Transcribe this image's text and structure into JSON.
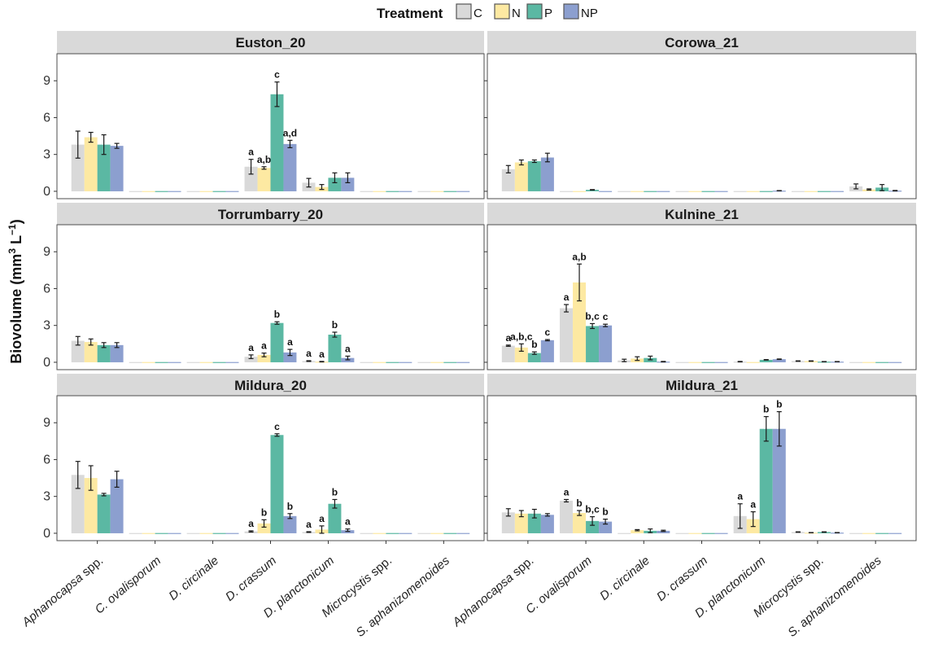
{
  "chart_data": {
    "type": "bar",
    "facets": [
      "Euston_20",
      "Corowa_21",
      "Torrumbarry_20",
      "Kulnine_21",
      "Mildura_20",
      "Mildura_21"
    ],
    "categories": [
      "Aphanocapsa spp.",
      "C. ovalisporum",
      "D. circinale",
      "D. crassum",
      "D. planctonicum",
      "Microcystis spp.",
      "S. aphanizomenoides"
    ],
    "treatments": [
      "C",
      "N",
      "P",
      "NP"
    ],
    "legend_title": "Treatment",
    "ylabel_main": "Biovolume (mm",
    "ylabel_sup1": "3",
    "ylabel_mid": " L",
    "ylabel_sup2": "−1",
    "ylabel_close": ")",
    "yticks": [
      "0",
      "3",
      "6",
      "9"
    ],
    "ylim": [
      -0.6,
      11.2
    ],
    "colors": {
      "C": "#d9d9d9",
      "N": "#fde9a2",
      "P": "#5bb8a3",
      "NP": "#8c9fcf"
    },
    "panels": {
      "Euston_20": {
        "values": [
          [
            3.8,
            4.4,
            3.8,
            3.7
          ],
          [
            0.02,
            0.02,
            0.02,
            0.02
          ],
          [
            0.02,
            0.02,
            0.02,
            0.02
          ],
          [
            2.0,
            1.9,
            7.9,
            3.85
          ],
          [
            0.7,
            0.35,
            1.1,
            1.1
          ],
          [
            0.02,
            0.02,
            0.02,
            0.02
          ],
          [
            0.02,
            0.02,
            0.02,
            0.02
          ]
        ],
        "errors": [
          [
            1.1,
            0.4,
            0.8,
            0.2
          ],
          [
            0,
            0,
            0,
            0
          ],
          [
            0,
            0,
            0,
            0
          ],
          [
            0.6,
            0.1,
            1.0,
            0.3
          ],
          [
            0.35,
            0.2,
            0.4,
            0.4
          ],
          [
            0,
            0,
            0,
            0
          ],
          [
            0,
            0,
            0,
            0
          ]
        ],
        "labels": [
          [],
          [],
          [],
          [
            "a",
            "a,b",
            "c",
            "a,d"
          ],
          [],
          [],
          []
        ]
      },
      "Corowa_21": {
        "values": [
          [
            1.8,
            2.35,
            2.45,
            2.75
          ],
          [
            0.02,
            0.02,
            0.12,
            0.02
          ],
          [
            0.02,
            0.02,
            0.02,
            0.02
          ],
          [
            0.02,
            0.02,
            0.02,
            0.02
          ],
          [
            0.02,
            0.02,
            0.02,
            0.05
          ],
          [
            0.02,
            0.02,
            0.02,
            0.02
          ],
          [
            0.4,
            0.15,
            0.3,
            0.05
          ]
        ],
        "errors": [
          [
            0.3,
            0.2,
            0.1,
            0.35
          ],
          [
            0,
            0,
            0.02,
            0
          ],
          [
            0,
            0,
            0,
            0
          ],
          [
            0,
            0,
            0,
            0
          ],
          [
            0,
            0,
            0,
            0.01
          ],
          [
            0,
            0,
            0,
            0
          ],
          [
            0.2,
            0.05,
            0.25,
            0.02
          ]
        ],
        "labels": [
          [],
          [],
          [],
          [],
          [],
          [],
          []
        ]
      },
      "Torrumbarry_20": {
        "values": [
          [
            1.75,
            1.65,
            1.4,
            1.4
          ],
          [
            0.02,
            0.02,
            0.02,
            0.02
          ],
          [
            0.02,
            0.02,
            0.02,
            0.02
          ],
          [
            0.45,
            0.6,
            3.2,
            0.8
          ],
          [
            0.1,
            0.05,
            2.25,
            0.35
          ],
          [
            0.02,
            0.02,
            0.02,
            0.02
          ],
          [
            0.02,
            0.02,
            0.02,
            0.02
          ]
        ],
        "errors": [
          [
            0.35,
            0.25,
            0.2,
            0.2
          ],
          [
            0,
            0,
            0,
            0
          ],
          [
            0,
            0,
            0,
            0
          ],
          [
            0.15,
            0.15,
            0.1,
            0.25
          ],
          [
            0.03,
            0.02,
            0.2,
            0.15
          ],
          [
            0,
            0,
            0,
            0
          ],
          [
            0,
            0,
            0,
            0
          ]
        ],
        "labels": [
          [],
          [],
          [],
          [
            "a",
            "a",
            "b",
            "a"
          ],
          [
            "a",
            "a",
            "b",
            "a"
          ],
          [],
          []
        ]
      },
      "Kulnine_21": {
        "values": [
          [
            1.35,
            1.2,
            0.75,
            1.8
          ],
          [
            4.4,
            6.5,
            2.95,
            3.0
          ],
          [
            0.15,
            0.3,
            0.35,
            0.05
          ],
          [
            0.02,
            0.02,
            0.02,
            0.02
          ],
          [
            0.05,
            0.02,
            0.2,
            0.25
          ],
          [
            0.1,
            0.1,
            0.05,
            0.05
          ],
          [
            0.02,
            0.02,
            0.02,
            0.02
          ]
        ],
        "errors": [
          [
            0.05,
            0.3,
            0.1,
            0.05
          ],
          [
            0.3,
            1.5,
            0.2,
            0.1
          ],
          [
            0.1,
            0.15,
            0.15,
            0.02
          ],
          [
            0,
            0,
            0,
            0
          ],
          [
            0.02,
            0,
            0.02,
            0.02
          ],
          [
            0.02,
            0.02,
            0.01,
            0.01
          ],
          [
            0,
            0,
            0,
            0
          ]
        ],
        "labels": [
          [
            "a",
            "a,b,c",
            "b",
            "c"
          ],
          [
            "a",
            "a,b",
            "b,c",
            "c"
          ],
          [],
          [],
          [],
          [],
          []
        ]
      },
      "Mildura_20": {
        "values": [
          [
            4.75,
            4.5,
            3.15,
            4.4
          ],
          [
            0.02,
            0.02,
            0.02,
            0.02
          ],
          [
            0.02,
            0.02,
            0.02,
            0.02
          ],
          [
            0.15,
            0.8,
            8.0,
            1.4
          ],
          [
            0.1,
            0.3,
            2.4,
            0.25
          ],
          [
            0.02,
            0.02,
            0.02,
            0.02
          ],
          [
            0.02,
            0.02,
            0.02,
            0.02
          ]
        ],
        "errors": [
          [
            1.1,
            1.0,
            0.1,
            0.65
          ],
          [
            0,
            0,
            0,
            0
          ],
          [
            0,
            0,
            0,
            0
          ],
          [
            0.05,
            0.3,
            0.1,
            0.2
          ],
          [
            0.03,
            0.3,
            0.35,
            0.1
          ],
          [
            0,
            0,
            0,
            0
          ],
          [
            0,
            0,
            0,
            0
          ]
        ],
        "labels": [
          [],
          [],
          [],
          [
            "a",
            "b",
            "c",
            "b"
          ],
          [
            "a",
            "a",
            "b",
            "a"
          ],
          [],
          []
        ]
      },
      "Mildura_21": {
        "values": [
          [
            1.7,
            1.6,
            1.6,
            1.5
          ],
          [
            2.65,
            1.65,
            1.0,
            0.95
          ],
          [
            0.02,
            0.25,
            0.2,
            0.2
          ],
          [
            0.02,
            0.02,
            0.02,
            0.02
          ],
          [
            1.4,
            1.15,
            8.5,
            8.5
          ],
          [
            0.1,
            0.05,
            0.1,
            0.05
          ],
          [
            0.02,
            0.02,
            0.02,
            0.02
          ]
        ],
        "errors": [
          [
            0.3,
            0.25,
            0.35,
            0.1
          ],
          [
            0.1,
            0.2,
            0.35,
            0.2
          ],
          [
            0,
            0.05,
            0.15,
            0.05
          ],
          [
            0,
            0,
            0,
            0
          ],
          [
            1.0,
            0.6,
            1.0,
            1.4
          ],
          [
            0.02,
            0.01,
            0.02,
            0.01
          ],
          [
            0,
            0,
            0,
            0
          ]
        ],
        "labels": [
          [],
          [
            "a",
            "b",
            "b,c",
            "b"
          ],
          [],
          [],
          [
            "a",
            "a",
            "b",
            "b"
          ],
          [],
          []
        ]
      }
    }
  }
}
